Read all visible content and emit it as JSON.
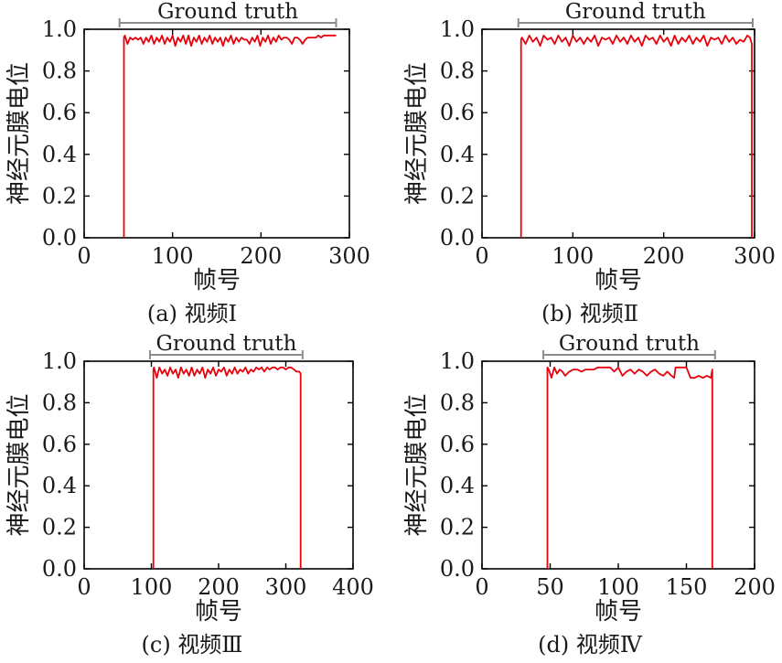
{
  "chart_data": [
    {
      "type": "line",
      "caption": "(a) 视频Ⅰ",
      "xlabel": "帧号",
      "ylabel": "神经元膜电位",
      "xlim": [
        0,
        300
      ],
      "ylim": [
        0,
        1.0
      ],
      "xticks": [
        0,
        100,
        200,
        300
      ],
      "yticks": [
        0.0,
        0.2,
        0.4,
        0.6,
        0.8,
        1.0
      ],
      "ytick_labels": [
        "0.0",
        "0.2",
        "0.4",
        "0.6",
        "0.8",
        "1.0"
      ],
      "ground_truth": {
        "label": "Ground truth",
        "start": 40,
        "end": 285
      },
      "series": [
        {
          "color": "#e8000b",
          "x": [
            45,
            45,
            46,
            49,
            52,
            55,
            58,
            61,
            64,
            67,
            70,
            73,
            76,
            79,
            82,
            85,
            88,
            91,
            94,
            97,
            100,
            103,
            106,
            109,
            112,
            115,
            118,
            121,
            124,
            127,
            130,
            133,
            136,
            139,
            142,
            145,
            148,
            151,
            154,
            157,
            160,
            163,
            166,
            169,
            172,
            175,
            178,
            181,
            184,
            187,
            190,
            193,
            196,
            199,
            202,
            205,
            208,
            211,
            214,
            217,
            220,
            223,
            226,
            229,
            232,
            235,
            238,
            241,
            244,
            247,
            250,
            253,
            256,
            259,
            262,
            265,
            268,
            271,
            274,
            277,
            280,
            285
          ],
          "y": [
            0.0,
            0.96,
            0.97,
            0.93,
            0.96,
            0.95,
            0.96,
            0.95,
            0.96,
            0.93,
            0.96,
            0.94,
            0.97,
            0.93,
            0.96,
            0.94,
            0.97,
            0.93,
            0.96,
            0.94,
            0.97,
            0.92,
            0.96,
            0.94,
            0.97,
            0.93,
            0.97,
            0.92,
            0.96,
            0.94,
            0.97,
            0.93,
            0.96,
            0.94,
            0.97,
            0.93,
            0.96,
            0.94,
            0.96,
            0.92,
            0.96,
            0.94,
            0.97,
            0.93,
            0.96,
            0.94,
            0.96,
            0.95,
            0.95,
            0.93,
            0.96,
            0.94,
            0.97,
            0.92,
            0.96,
            0.94,
            0.97,
            0.93,
            0.96,
            0.94,
            0.97,
            0.95,
            0.96,
            0.96,
            0.95,
            0.93,
            0.96,
            0.96,
            0.95,
            0.93,
            0.95,
            0.96,
            0.96,
            0.96,
            0.96,
            0.97,
            0.96,
            0.97,
            0.97,
            0.97,
            0.97,
            0.97
          ]
        }
      ]
    },
    {
      "type": "line",
      "caption": "(b) 视频Ⅱ",
      "xlabel": "帧号",
      "ylabel": "神经元膜电位",
      "xlim": [
        0,
        300
      ],
      "ylim": [
        0,
        1.0
      ],
      "xticks": [
        0,
        100,
        200,
        300
      ],
      "yticks": [
        0.0,
        0.2,
        0.4,
        0.6,
        0.8,
        1.0
      ],
      "ytick_labels": [
        "0.0",
        "0.2",
        "0.4",
        "0.6",
        "0.8",
        "1.0"
      ],
      "ground_truth": {
        "label": "Ground truth",
        "start": 40,
        "end": 298
      },
      "series": [
        {
          "color": "#e8000b",
          "x": [
            43,
            43,
            44,
            48,
            52,
            56,
            60,
            64,
            68,
            72,
            76,
            80,
            84,
            88,
            92,
            96,
            100,
            104,
            108,
            112,
            116,
            120,
            124,
            128,
            132,
            136,
            140,
            144,
            148,
            152,
            156,
            160,
            164,
            168,
            172,
            176,
            180,
            184,
            188,
            192,
            196,
            200,
            204,
            208,
            212,
            216,
            220,
            224,
            228,
            232,
            236,
            240,
            244,
            248,
            252,
            256,
            260,
            264,
            268,
            272,
            276,
            280,
            284,
            288,
            292,
            295,
            297,
            297
          ],
          "y": [
            0.0,
            0.95,
            0.96,
            0.93,
            0.97,
            0.94,
            0.96,
            0.92,
            0.97,
            0.95,
            0.96,
            0.93,
            0.97,
            0.94,
            0.96,
            0.92,
            0.97,
            0.94,
            0.96,
            0.93,
            0.96,
            0.94,
            0.97,
            0.92,
            0.96,
            0.95,
            0.96,
            0.93,
            0.97,
            0.94,
            0.96,
            0.93,
            0.97,
            0.94,
            0.96,
            0.92,
            0.97,
            0.95,
            0.96,
            0.93,
            0.97,
            0.94,
            0.96,
            0.92,
            0.97,
            0.93,
            0.96,
            0.94,
            0.97,
            0.93,
            0.96,
            0.94,
            0.97,
            0.92,
            0.96,
            0.95,
            0.96,
            0.93,
            0.97,
            0.94,
            0.96,
            0.93,
            0.95,
            0.94,
            0.97,
            0.96,
            0.93,
            0.0
          ]
        }
      ]
    },
    {
      "type": "line",
      "caption": "(c) 视频Ⅲ",
      "xlabel": "帧号",
      "ylabel": "神经元膜电位",
      "xlim": [
        0,
        400
      ],
      "ylim": [
        0,
        1.0
      ],
      "xticks": [
        0,
        100,
        200,
        300,
        400
      ],
      "yticks": [
        0.0,
        0.2,
        0.4,
        0.6,
        0.8,
        1.0
      ],
      "ytick_labels": [
        "0.0",
        "0.2",
        "0.4",
        "0.6",
        "0.8",
        "1.0"
      ],
      "ground_truth": {
        "label": "Ground truth",
        "start": 98,
        "end": 325
      },
      "series": [
        {
          "color": "#e8000b",
          "x": [
            103,
            103,
            104,
            108,
            112,
            116,
            120,
            124,
            128,
            132,
            136,
            140,
            144,
            148,
            152,
            156,
            160,
            164,
            168,
            172,
            176,
            180,
            184,
            188,
            192,
            196,
            200,
            204,
            208,
            212,
            216,
            220,
            224,
            228,
            232,
            236,
            240,
            244,
            248,
            252,
            256,
            260,
            264,
            268,
            272,
            276,
            280,
            284,
            288,
            292,
            296,
            300,
            304,
            308,
            312,
            316,
            320,
            322,
            322
          ],
          "y": [
            0.0,
            0.96,
            0.97,
            0.92,
            0.97,
            0.94,
            0.96,
            0.93,
            0.97,
            0.94,
            0.96,
            0.92,
            0.97,
            0.94,
            0.96,
            0.93,
            0.97,
            0.93,
            0.96,
            0.94,
            0.97,
            0.92,
            0.96,
            0.94,
            0.97,
            0.93,
            0.96,
            0.95,
            0.97,
            0.93,
            0.96,
            0.94,
            0.97,
            0.94,
            0.96,
            0.95,
            0.97,
            0.94,
            0.96,
            0.95,
            0.97,
            0.96,
            0.97,
            0.95,
            0.97,
            0.96,
            0.97,
            0.97,
            0.96,
            0.97,
            0.97,
            0.96,
            0.97,
            0.97,
            0.96,
            0.95,
            0.95,
            0.94,
            0.0
          ]
        }
      ]
    },
    {
      "type": "line",
      "caption": "(d) 视频Ⅳ",
      "xlabel": "帧号",
      "ylabel": "神经元膜电位",
      "xlim": [
        0,
        200
      ],
      "ylim": [
        0,
        1.0
      ],
      "xticks": [
        0,
        50,
        100,
        150,
        200
      ],
      "yticks": [
        0.0,
        0.2,
        0.4,
        0.6,
        0.8,
        1.0
      ],
      "ytick_labels": [
        "0.0",
        "0.2",
        "0.4",
        "0.6",
        "0.8",
        "1.0"
      ],
      "ground_truth": {
        "label": "Ground truth",
        "start": 45,
        "end": 171
      },
      "series": [
        {
          "color": "#e8000b",
          "x": [
            48,
            48,
            49,
            51,
            53,
            55,
            57,
            59,
            61,
            64,
            67,
            70,
            73,
            76,
            79,
            82,
            85,
            88,
            91,
            94,
            97,
            100,
            103,
            106,
            109,
            112,
            115,
            118,
            121,
            124,
            127,
            130,
            133,
            136,
            139,
            141,
            142,
            145,
            148,
            150,
            153,
            156,
            159,
            162,
            165,
            168,
            169,
            169
          ],
          "y": [
            0.0,
            0.97,
            0.96,
            0.92,
            0.97,
            0.94,
            0.96,
            0.95,
            0.93,
            0.95,
            0.96,
            0.96,
            0.95,
            0.96,
            0.96,
            0.96,
            0.97,
            0.97,
            0.97,
            0.97,
            0.95,
            0.97,
            0.93,
            0.95,
            0.96,
            0.94,
            0.96,
            0.95,
            0.93,
            0.95,
            0.96,
            0.94,
            0.93,
            0.95,
            0.93,
            0.92,
            0.97,
            0.97,
            0.97,
            0.97,
            0.92,
            0.92,
            0.93,
            0.92,
            0.93,
            0.92,
            0.96,
            0.0
          ]
        }
      ]
    }
  ]
}
